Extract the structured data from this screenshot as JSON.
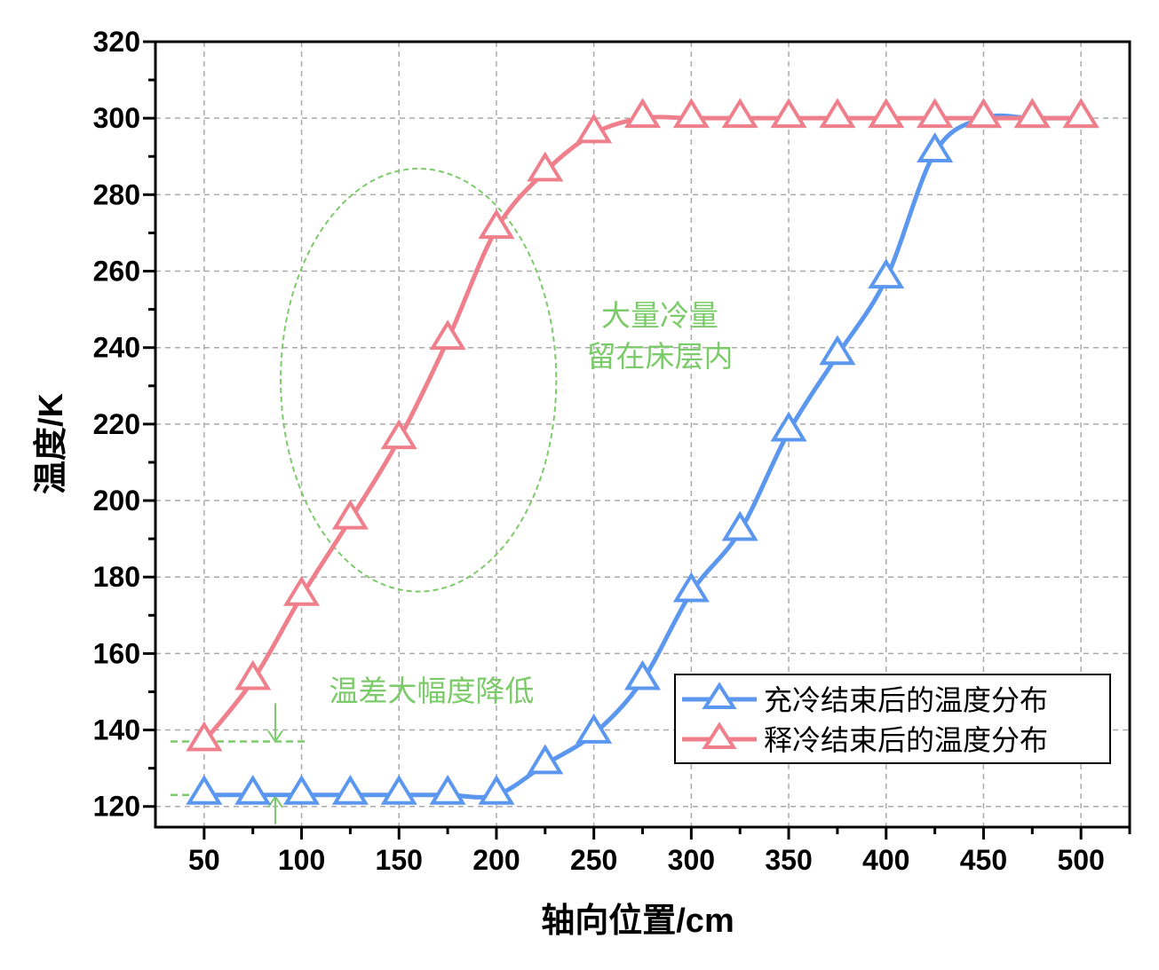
{
  "chart_data": {
    "type": "line",
    "title": "",
    "xlabel": "轴向位置/cm",
    "ylabel": "温度/K",
    "xlim": [
      25,
      525
    ],
    "ylim": [
      114.6,
      320
    ],
    "xticks": [
      50,
      100,
      150,
      200,
      250,
      300,
      350,
      400,
      450,
      500
    ],
    "yticks": [
      120,
      140,
      160,
      180,
      200,
      220,
      240,
      260,
      280,
      300,
      320
    ],
    "grid": true,
    "legend_position": "bottom-right",
    "x": [
      50,
      75,
      100,
      125,
      150,
      175,
      200,
      225,
      250,
      275,
      300,
      325,
      350,
      375,
      400,
      425,
      450,
      475,
      500
    ],
    "series": [
      {
        "name": "充冷结束后的温度分布",
        "color": "#5b97ee",
        "values": [
          123,
          123,
          123,
          123,
          123,
          123,
          123,
          131,
          139,
          153,
          176,
          192,
          218,
          238,
          258,
          291,
          300,
          300,
          300
        ]
      },
      {
        "name": "释冷结束后的温度分布",
        "color": "#f07f8c",
        "values": [
          137,
          153,
          175,
          195,
          216,
          242,
          271,
          286,
          296,
          300,
          300,
          300,
          300,
          300,
          300,
          300,
          300,
          300,
          300
        ]
      }
    ],
    "annotations": {
      "region_text_1": "大量冷量",
      "region_text_2": "留在床层内",
      "diff_text": "温差大幅度降低",
      "annotation_color": "#7ccb6a",
      "ellipse_center": [
        160,
        231.5
      ],
      "ellipse_radii": [
        70.7,
        55.3
      ],
      "diff_levels": [
        137,
        123
      ]
    }
  }
}
